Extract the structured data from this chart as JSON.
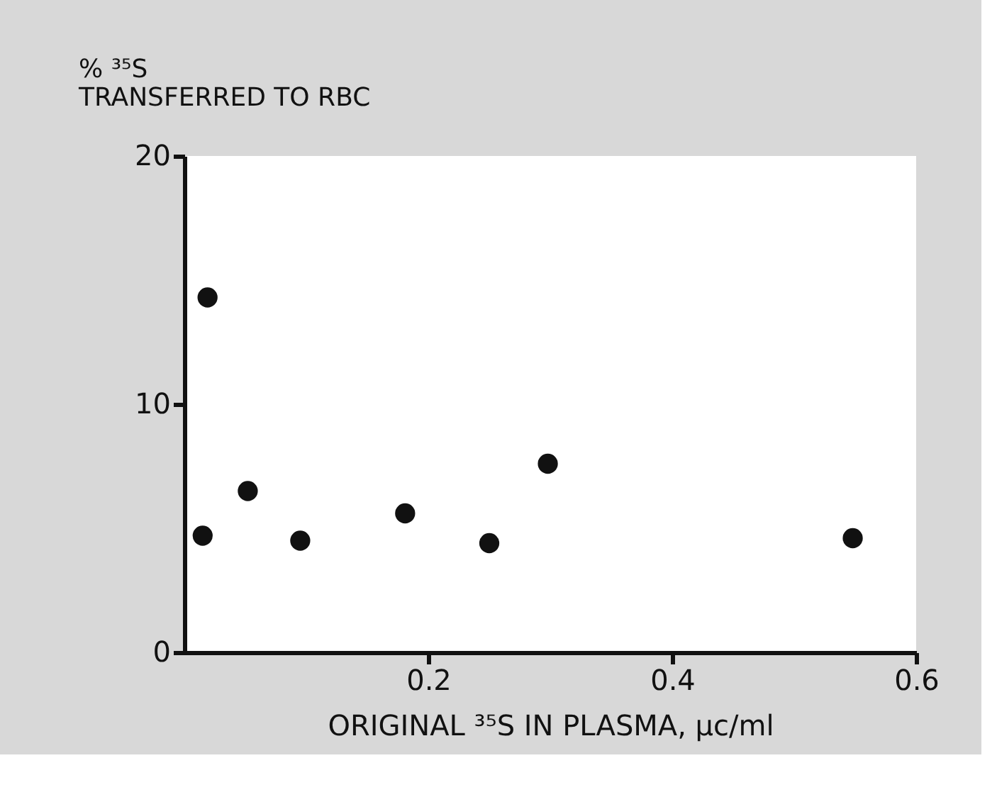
{
  "chart_data": {
    "type": "scatter",
    "ylabel": "% ³⁵S\nTRANSFERRED TO RBC",
    "xlabel": "ORIGINAL ³⁵S IN PLASMA, µc/ml",
    "x": [
      0.015,
      0.019,
      0.052,
      0.095,
      0.181,
      0.25,
      0.298,
      0.548
    ],
    "values": [
      4.7,
      14.3,
      6.5,
      4.5,
      5.6,
      4.4,
      7.6,
      4.6
    ],
    "color": "#111111",
    "marker": "circle",
    "grid": false,
    "xlim": [
      0,
      0.6
    ],
    "ylim": [
      0,
      20
    ],
    "xticks": [
      0.2,
      0.4,
      0.6
    ],
    "yticks": [
      0,
      10,
      20
    ]
  }
}
